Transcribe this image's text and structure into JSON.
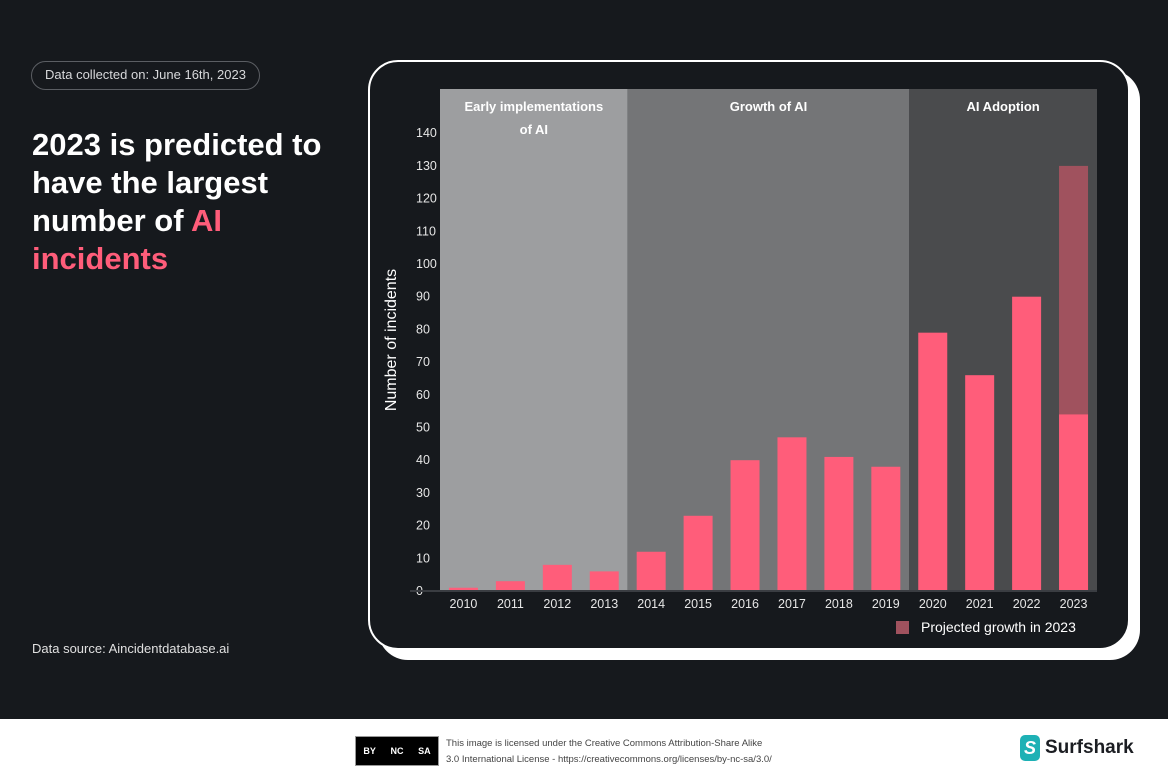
{
  "collected_label": "Data collected on: June 16th, 2023",
  "headline": {
    "part1": "2023 is predicted to have the largest number of ",
    "highlight": "AI incidents"
  },
  "source": "Data source: Aincidentdatabase.ai",
  "chart_data": {
    "type": "bar",
    "ylabel": "Number of incidents",
    "ylim": [
      0,
      140
    ],
    "yticks": [
      0,
      10,
      20,
      30,
      40,
      50,
      60,
      70,
      80,
      90,
      100,
      110,
      120,
      130,
      140
    ],
    "categories": [
      "2010",
      "2011",
      "2012",
      "2013",
      "2014",
      "2015",
      "2016",
      "2017",
      "2018",
      "2019",
      "2020",
      "2021",
      "2022",
      "2023"
    ],
    "series": [
      {
        "name": "Incidents",
        "color": "#ff5d7a",
        "values": [
          1,
          3,
          8,
          6,
          12,
          23,
          40,
          47,
          41,
          38,
          79,
          66,
          90,
          54
        ]
      },
      {
        "name": "Projected growth in 2023",
        "color": "#a0525e",
        "values": [
          null,
          null,
          null,
          null,
          null,
          null,
          null,
          null,
          null,
          null,
          null,
          null,
          null,
          130
        ]
      }
    ],
    "periods": [
      {
        "label1": "Early implementations",
        "label2": "of AI",
        "from": "2010",
        "to": "2013",
        "color": "#9d9ea0"
      },
      {
        "label1": "Growth of AI",
        "label2": "",
        "from": "2014",
        "to": "2019",
        "color": "#747577"
      },
      {
        "label1": "AI Adoption",
        "label2": "",
        "from": "2020",
        "to": "2023",
        "color": "#4a4b4d"
      }
    ],
    "legend": {
      "label": "Projected growth in 2023",
      "placement": "bottom-right"
    }
  },
  "footer": {
    "cc_badges": [
      "BY",
      "NC",
      "SA"
    ],
    "license_line1": "This image is licensed under the Creative Commons Attribution-Share Alike",
    "license_line2": "3.0 International License - https://creativecommons.org/licenses/by-nc-sa/3.0/",
    "brand": "Surfshark"
  }
}
